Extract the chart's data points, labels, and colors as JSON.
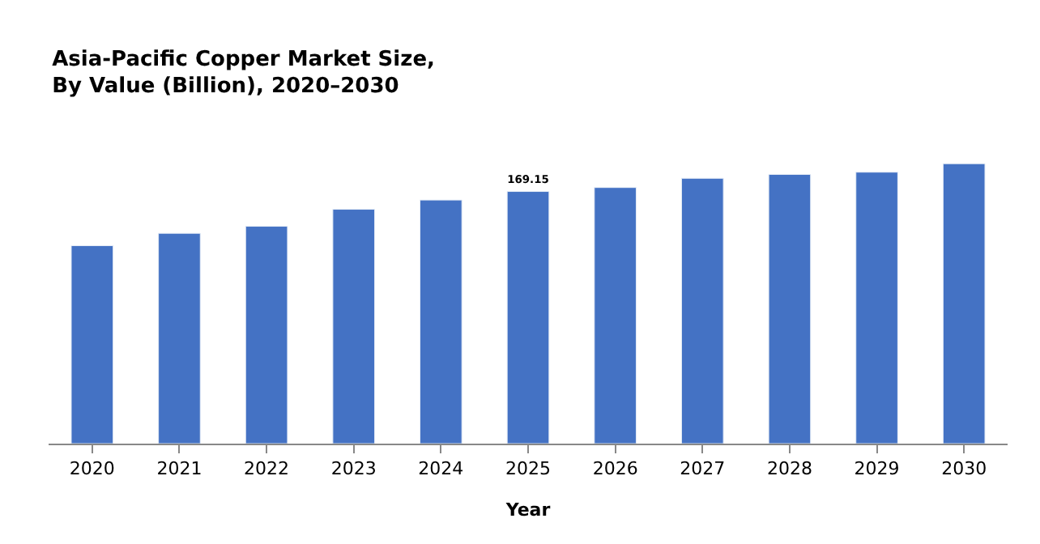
{
  "chart_data": {
    "type": "bar",
    "title": "Asia-Pacific Copper Market Size,\nBy Value (Billion), 2020–2030",
    "xlabel": "Year",
    "categories": [
      "2020",
      "2021",
      "2022",
      "2023",
      "2024",
      "2025",
      "2026",
      "2027",
      "2028",
      "2029",
      "2030"
    ],
    "values": [
      132.8,
      141.1,
      145.8,
      157.2,
      163.4,
      169.15,
      171.8,
      178.0,
      180.6,
      182.1,
      187.8
    ],
    "value_labels": [
      null,
      null,
      null,
      null,
      null,
      "169.15",
      null,
      null,
      null,
      null,
      null
    ],
    "color": "#4472c4",
    "legend": false
  }
}
